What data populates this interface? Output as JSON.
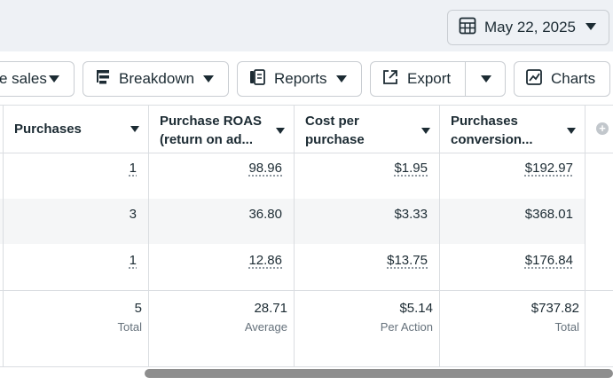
{
  "date_picker": {
    "label": "May 22, 2025",
    "icon": "calendar-icon"
  },
  "toolbar": {
    "sales_label": "e sales",
    "breakdown_label": "Breakdown",
    "reports_label": "Reports",
    "export_label": "Export",
    "charts_label": "Charts"
  },
  "columns": [
    {
      "line1": "Purchases",
      "line2": ""
    },
    {
      "line1": "Purchase ROAS",
      "line2": "(return on ad..."
    },
    {
      "line1": "Cost per",
      "line2": "purchase"
    },
    {
      "line1": "Purchases",
      "line2": "conversion..."
    }
  ],
  "rows": [
    {
      "purchases": "1",
      "roas": "98.96",
      "cpp": "$1.95",
      "conv": "$192.97"
    },
    {
      "purchases": "3",
      "roas": "36.80",
      "cpp": "$3.33",
      "conv": "$368.01"
    },
    {
      "purchases": "1",
      "roas": "12.86",
      "cpp": "$13.75",
      "conv": "$176.84"
    }
  ],
  "summary": {
    "purchases": "5",
    "purchases_label": "Total",
    "roas": "28.71",
    "roas_label": "Average",
    "cpp": "$5.14",
    "cpp_label": "Per Action",
    "conv": "$737.82",
    "conv_label": "Total"
  }
}
